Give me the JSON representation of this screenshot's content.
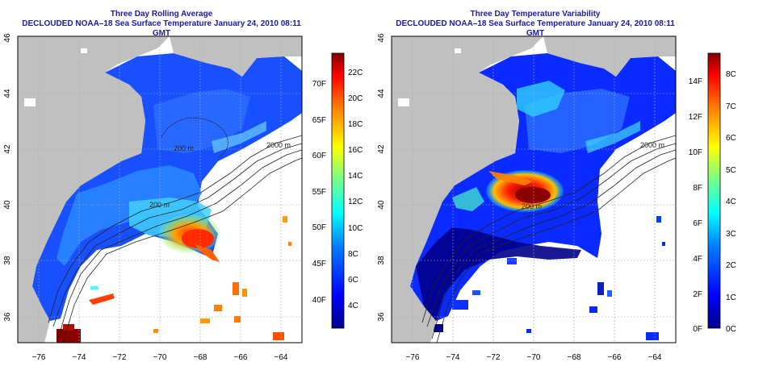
{
  "panels": [
    {
      "title": "Three Day Rolling Average",
      "subtitle": "DECLOUDED NOAA–18 Sea Surface Temperature January 24, 2010 08:11 GMT",
      "colorbar_f": [
        "40F",
        "45F",
        "50F",
        "55F",
        "60F",
        "65F",
        "70F"
      ],
      "colorbar_c": [
        "4C",
        "6C",
        "8C",
        "10C",
        "12C",
        "14C",
        "16C",
        "18C",
        "20C",
        "22C"
      ],
      "isobaths": [
        "200 m",
        "2000 m"
      ]
    },
    {
      "title": "Three Day Temperature Variability",
      "subtitle": "DECLOUDED NOAA–18 Sea Surface Temperature January 24, 2010 08:11 GMT",
      "colorbar_f": [
        "0F",
        "2F",
        "4F",
        "6F",
        "8F",
        "10F",
        "12F",
        "14F"
      ],
      "colorbar_c": [
        "0C",
        "1C",
        "2C",
        "3C",
        "4C",
        "5C",
        "6C",
        "7C",
        "8C"
      ],
      "isobaths": [
        "200 m",
        "2000 m"
      ]
    }
  ],
  "axes": {
    "lon_ticks": [
      "−76",
      "−74",
      "−72",
      "−70",
      "−68",
      "−66",
      "−64"
    ],
    "lat_ticks": [
      "36",
      "38",
      "40",
      "42",
      "44",
      "46"
    ]
  },
  "colors": {
    "land": "#c0c0c0",
    "title": "#1a1aa6",
    "colormap": [
      "#00008b",
      "#0000ff",
      "#0080ff",
      "#00ffff",
      "#80ff80",
      "#ffff00",
      "#ff8000",
      "#ff0000",
      "#800000"
    ]
  }
}
